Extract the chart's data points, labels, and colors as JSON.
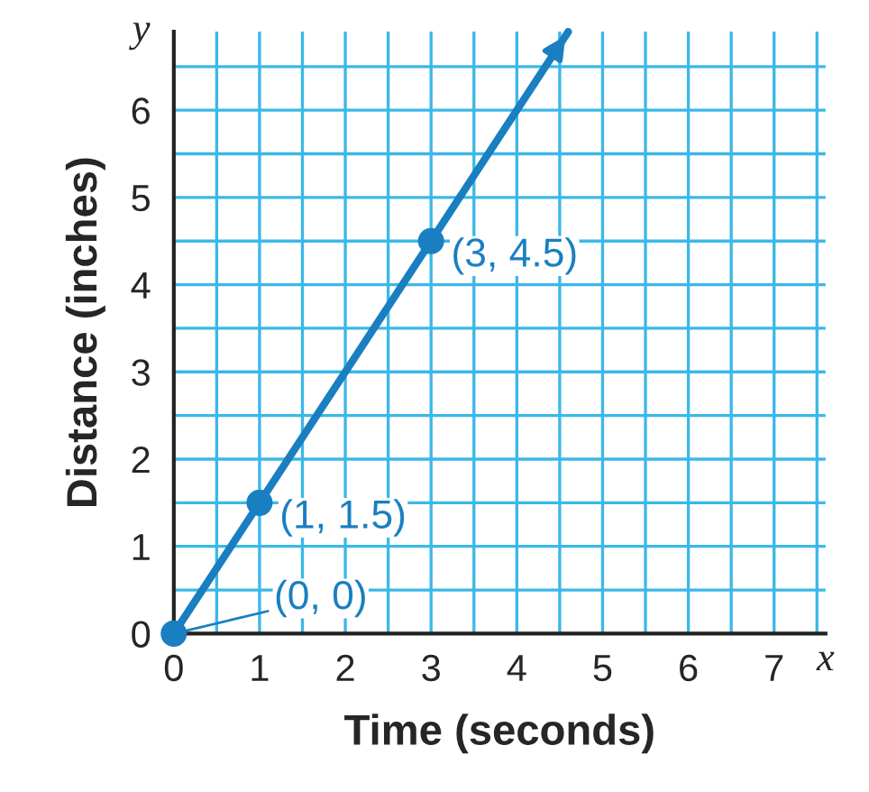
{
  "chart_data": {
    "type": "line",
    "xlabel": "Time (seconds)",
    "ylabel": "Distance (inches)",
    "series": [
      {
        "color": "#1a7fc1",
        "x": [
          0,
          4.6
        ],
        "values": [
          0,
          6.9
        ],
        "marker": "none"
      },
      {
        "type": "scatter",
        "color": "#1a7fc1",
        "x": [
          0,
          1,
          3
        ],
        "values": [
          0,
          1.5,
          4.5
        ],
        "marker": "circle"
      }
    ],
    "annotations": [
      {
        "text": "(0, 0)",
        "x": 0,
        "y": 0
      },
      {
        "text": "(1, 1.5)",
        "x": 1,
        "y": 1.5
      },
      {
        "text": "(3, 4.5)",
        "x": 3,
        "y": 4.5
      },
      "x",
      "y"
    ],
    "xlim": [
      0,
      7.6
    ],
    "ylim": [
      0,
      6.9
    ],
    "xticks": [
      0,
      {
        "value": 0.5,
        "label": null
      },
      1,
      {
        "value": 1.5,
        "label": null
      },
      2,
      {
        "value": 2.5,
        "label": null
      },
      3,
      {
        "value": 3.5,
        "label": null
      },
      4,
      {
        "value": 4.5,
        "label": null
      },
      5,
      {
        "value": 5.5,
        "label": null
      },
      6,
      {
        "value": 6.5,
        "label": null
      },
      7,
      {
        "value": 7.5,
        "label": null
      }
    ],
    "yticks": [
      0,
      {
        "value": 0.5,
        "label": null
      },
      1,
      {
        "value": 1.5,
        "label": null
      },
      2,
      {
        "value": 2.5,
        "label": null
      },
      3,
      {
        "value": 3.5,
        "label": null
      },
      4,
      {
        "value": 4.5,
        "label": null
      },
      5,
      {
        "value": 5.5,
        "label": null
      },
      6,
      {
        "value": 6.5,
        "label": null
      }
    ],
    "grid": true,
    "legend": false
  }
}
